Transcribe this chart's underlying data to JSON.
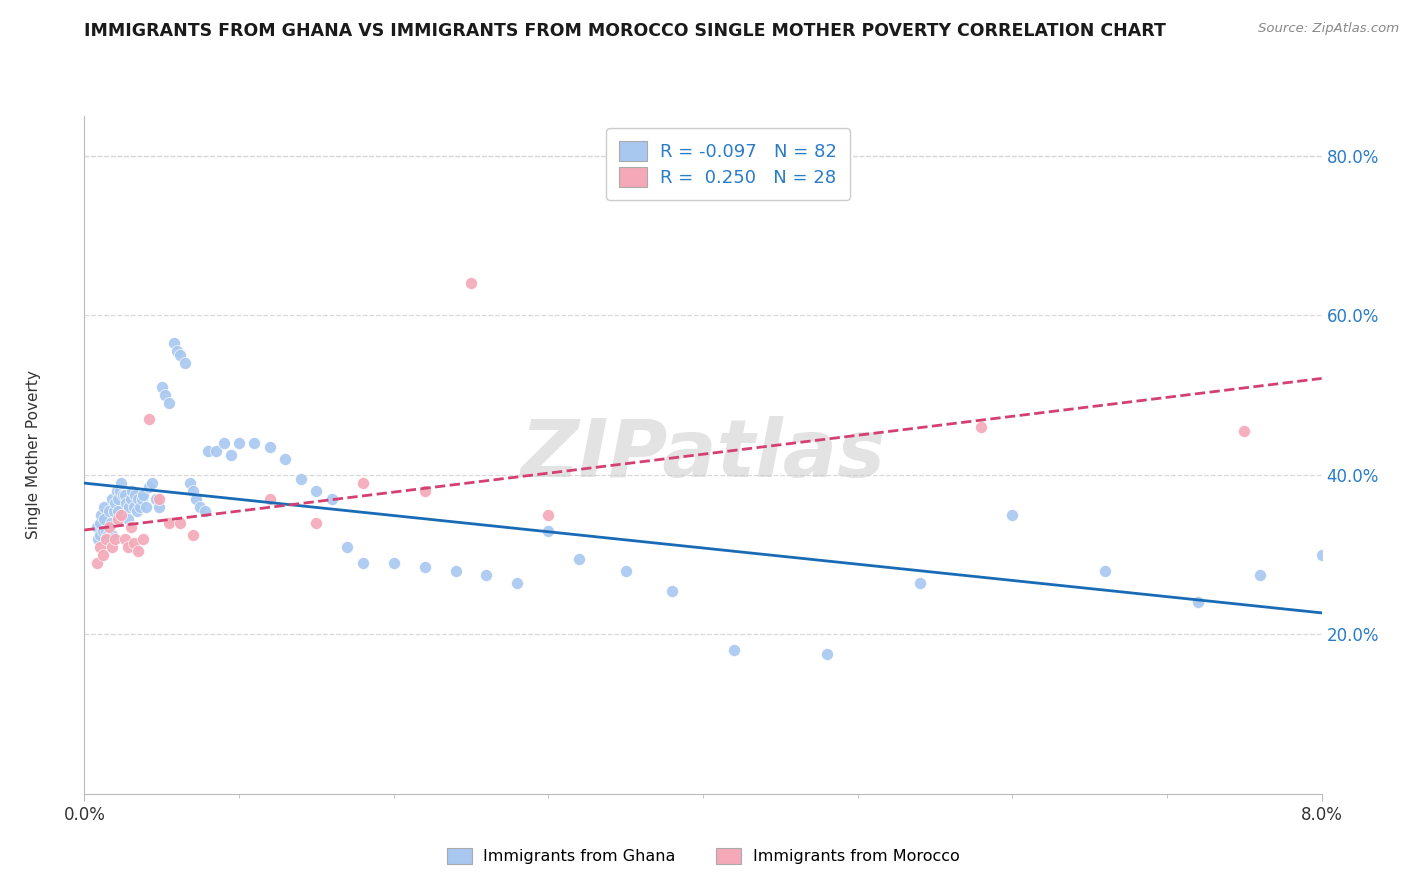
{
  "title": "IMMIGRANTS FROM GHANA VS IMMIGRANTS FROM MOROCCO SINGLE MOTHER POVERTY CORRELATION CHART",
  "source": "Source: ZipAtlas.com",
  "ylabel": "Single Mother Poverty",
  "xlim": [
    0.0,
    0.08
  ],
  "ylim": [
    0.0,
    0.85
  ],
  "ytick_values": [
    0.2,
    0.4,
    0.6,
    0.8
  ],
  "ghana_color": "#a8c8f0",
  "morocco_color": "#f4a8b8",
  "ghana_line_color": "#1a6bb5",
  "morocco_line_color": "#d44070",
  "ghana_R": -0.097,
  "ghana_N": 82,
  "morocco_R": 0.25,
  "morocco_N": 28,
  "ghana_points_x": [
    0.0008,
    0.0009,
    0.001,
    0.001,
    0.0011,
    0.0012,
    0.0013,
    0.0013,
    0.0014,
    0.0015,
    0.0016,
    0.0017,
    0.0018,
    0.0018,
    0.0019,
    0.002,
    0.0021,
    0.0022,
    0.0022,
    0.0023,
    0.0024,
    0.0025,
    0.0026,
    0.0027,
    0.0028,
    0.0029,
    0.003,
    0.0031,
    0.0032,
    0.0033,
    0.0034,
    0.0035,
    0.0036,
    0.0037,
    0.0038,
    0.004,
    0.0042,
    0.0044,
    0.0046,
    0.0048,
    0.005,
    0.0052,
    0.0055,
    0.0058,
    0.006,
    0.0062,
    0.0065,
    0.0068,
    0.007,
    0.0072,
    0.0075,
    0.0078,
    0.008,
    0.0085,
    0.009,
    0.0095,
    0.01,
    0.011,
    0.012,
    0.013,
    0.014,
    0.015,
    0.016,
    0.017,
    0.018,
    0.02,
    0.022,
    0.024,
    0.026,
    0.028,
    0.03,
    0.032,
    0.035,
    0.038,
    0.042,
    0.048,
    0.054,
    0.06,
    0.066,
    0.072,
    0.076,
    0.08
  ],
  "ghana_points_y": [
    0.335,
    0.32,
    0.34,
    0.325,
    0.35,
    0.33,
    0.36,
    0.345,
    0.33,
    0.325,
    0.355,
    0.34,
    0.37,
    0.325,
    0.355,
    0.365,
    0.38,
    0.37,
    0.355,
    0.38,
    0.39,
    0.375,
    0.375,
    0.365,
    0.345,
    0.36,
    0.37,
    0.38,
    0.36,
    0.375,
    0.355,
    0.37,
    0.36,
    0.37,
    0.375,
    0.36,
    0.385,
    0.39,
    0.37,
    0.36,
    0.51,
    0.5,
    0.49,
    0.565,
    0.555,
    0.55,
    0.54,
    0.39,
    0.38,
    0.37,
    0.36,
    0.355,
    0.43,
    0.43,
    0.44,
    0.425,
    0.44,
    0.44,
    0.435,
    0.42,
    0.395,
    0.38,
    0.37,
    0.31,
    0.29,
    0.29,
    0.285,
    0.28,
    0.275,
    0.265,
    0.33,
    0.295,
    0.28,
    0.255,
    0.18,
    0.175,
    0.265,
    0.35,
    0.28,
    0.24,
    0.275,
    0.3
  ],
  "morocco_points_x": [
    0.0008,
    0.001,
    0.0012,
    0.0014,
    0.0016,
    0.0018,
    0.002,
    0.0022,
    0.0024,
    0.0026,
    0.0028,
    0.003,
    0.0032,
    0.0035,
    0.0038,
    0.0042,
    0.0048,
    0.0055,
    0.0062,
    0.007,
    0.012,
    0.015,
    0.018,
    0.022,
    0.025,
    0.03,
    0.058,
    0.075
  ],
  "morocco_points_y": [
    0.29,
    0.31,
    0.3,
    0.32,
    0.335,
    0.31,
    0.32,
    0.345,
    0.35,
    0.32,
    0.31,
    0.335,
    0.315,
    0.305,
    0.32,
    0.47,
    0.37,
    0.34,
    0.34,
    0.325,
    0.37,
    0.34,
    0.39,
    0.38,
    0.64,
    0.35,
    0.46,
    0.455
  ],
  "watermark_text": "ZIPatlas",
  "background_color": "#ffffff",
  "grid_color": "#d8d8d8",
  "legend_labels": [
    "R = -0.097   N = 82",
    "R =  0.250   N = 28"
  ],
  "bottom_legend_labels": [
    "Immigrants from Ghana",
    "Immigrants from Morocco"
  ]
}
